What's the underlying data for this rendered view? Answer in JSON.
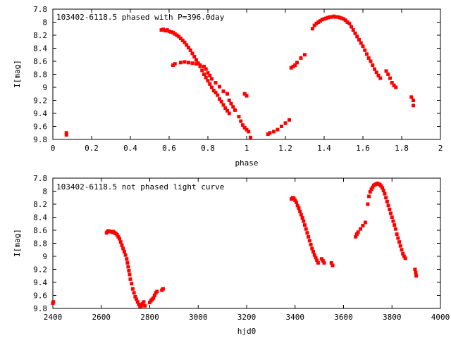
{
  "chart_data": [
    {
      "type": "scatter",
      "title": "103402-6118.5 phased with P=396.0day",
      "xlabel": "phase",
      "ylabel": "I[mag]",
      "xlim": [
        0,
        2
      ],
      "ylim": [
        7.8,
        9.8
      ],
      "y_inverted": true,
      "grid": false,
      "legend": "none",
      "xticks": [
        "0",
        "0.2",
        "0.4",
        "0.6",
        "0.8",
        "1",
        "1.2",
        "1.4",
        "1.6",
        "1.8",
        "2"
      ],
      "yticks": [
        "7.8",
        "8",
        "8.2",
        "8.4",
        "8.6",
        "8.8",
        "9",
        "9.2",
        "9.4",
        "9.6",
        "9.8"
      ],
      "marker_color": "#ff0000",
      "series": [
        {
          "x": [
            0.07,
            0.07,
            0.56,
            0.57,
            0.58,
            0.59,
            0.6,
            0.61,
            0.62,
            0.63,
            0.64,
            0.65,
            0.66,
            0.67,
            0.68,
            0.69,
            0.7,
            0.71,
            0.72,
            0.73,
            0.74,
            0.75,
            0.76,
            0.77,
            0.78,
            0.79,
            0.8,
            0.81,
            0.82,
            0.83,
            0.84,
            0.85,
            0.86,
            0.87,
            0.88,
            0.89,
            0.9,
            0.91,
            0.62,
            0.63,
            0.66,
            0.68,
            0.7,
            0.72,
            0.74,
            0.76,
            0.78,
            0.79,
            0.8,
            0.81,
            0.82,
            0.84,
            0.86,
            0.88,
            0.9,
            0.91,
            0.92,
            0.93,
            0.94,
            0.96,
            0.97,
            0.98,
            0.99,
            1.0,
            1.01,
            0.99,
            1.0,
            1.02,
            1.11,
            1.12,
            1.14,
            1.16,
            1.18,
            1.2,
            1.22,
            1.23,
            1.24,
            1.25,
            1.26,
            1.28,
            1.3,
            1.34,
            1.35,
            1.36,
            1.37,
            1.38,
            1.39,
            1.4,
            1.41,
            1.42,
            1.43,
            1.44,
            1.45,
            1.46,
            1.47,
            1.48,
            1.49,
            1.5,
            1.51,
            1.52,
            1.53,
            1.54,
            1.55,
            1.56,
            1.57,
            1.58,
            1.59,
            1.6,
            1.61,
            1.62,
            1.63,
            1.64,
            1.65,
            1.66,
            1.67,
            1.68,
            1.69,
            1.72,
            1.73,
            1.74,
            1.75,
            1.76,
            1.77,
            1.85,
            1.86,
            1.86
          ],
          "y": [
            9.7,
            9.73,
            8.12,
            8.11,
            8.13,
            8.12,
            8.14,
            8.15,
            8.16,
            8.18,
            8.2,
            8.22,
            8.25,
            8.28,
            8.31,
            8.35,
            8.39,
            8.43,
            8.48,
            8.53,
            8.58,
            8.63,
            8.68,
            8.74,
            8.8,
            8.85,
            8.9,
            8.95,
            9.0,
            9.05,
            9.08,
            9.12,
            9.18,
            9.22,
            9.27,
            9.32,
            9.36,
            9.4,
            8.66,
            8.64,
            8.62,
            8.61,
            8.62,
            8.63,
            8.64,
            8.66,
            8.68,
            8.72,
            8.78,
            8.82,
            8.87,
            8.93,
            8.99,
            9.06,
            9.1,
            9.2,
            9.25,
            9.3,
            9.35,
            9.45,
            9.52,
            9.58,
            9.62,
            9.65,
            9.68,
            9.1,
            9.13,
            9.77,
            9.72,
            9.7,
            9.68,
            9.65,
            9.6,
            9.55,
            9.5,
            8.7,
            8.68,
            8.66,
            8.62,
            8.55,
            8.5,
            8.1,
            8.05,
            8.02,
            8.0,
            7.98,
            7.96,
            7.95,
            7.94,
            7.93,
            7.92,
            7.92,
            7.91,
            7.92,
            7.92,
            7.93,
            7.94,
            7.95,
            7.97,
            8.0,
            8.02,
            8.07,
            8.12,
            8.17,
            8.22,
            8.27,
            8.32,
            8.37,
            8.43,
            8.49,
            8.55,
            8.6,
            8.66,
            8.72,
            8.77,
            8.82,
            8.86,
            8.75,
            8.8,
            8.86,
            8.93,
            8.97,
            9.0,
            9.15,
            9.2,
            9.28
          ]
        }
      ]
    },
    {
      "type": "scatter",
      "title": "103402-6118.5 not phased light curve",
      "xlabel": "hjd0",
      "ylabel": "I[mag]",
      "xlim": [
        2400,
        4000
      ],
      "ylim": [
        7.8,
        9.8
      ],
      "y_inverted": true,
      "grid": false,
      "legend": "none",
      "xticks": [
        "2400",
        "2600",
        "2800",
        "3000",
        "3200",
        "3400",
        "3600",
        "3800",
        "4000"
      ],
      "yticks": [
        "7.8",
        "8",
        "8.2",
        "8.4",
        "8.6",
        "8.8",
        "9",
        "9.2",
        "9.4",
        "9.6",
        "9.8"
      ],
      "marker_color": "#ff0000",
      "series": [
        {
          "x": [
            2400,
            2402,
            2622,
            2625,
            2630,
            2635,
            2640,
            2645,
            2650,
            2655,
            2660,
            2665,
            2670,
            2675,
            2680,
            2685,
            2690,
            2695,
            2700,
            2705,
            2708,
            2711,
            2714,
            2717,
            2720,
            2725,
            2730,
            2735,
            2740,
            2745,
            2750,
            2755,
            2760,
            2765,
            2770,
            2775,
            2780,
            2800,
            2805,
            2810,
            2815,
            2820,
            2825,
            2830,
            2850,
            2855,
            3385,
            3390,
            3395,
            3400,
            3405,
            3410,
            3415,
            3420,
            3425,
            3430,
            3435,
            3440,
            3445,
            3450,
            3455,
            3460,
            3465,
            3470,
            3475,
            3480,
            3485,
            3490,
            3495,
            3510,
            3515,
            3520,
            3550,
            3555,
            3650,
            3655,
            3660,
            3670,
            3680,
            3690,
            3700,
            3705,
            3710,
            3715,
            3720,
            3725,
            3730,
            3735,
            3740,
            3745,
            3750,
            3755,
            3760,
            3765,
            3770,
            3775,
            3780,
            3785,
            3790,
            3795,
            3800,
            3805,
            3810,
            3815,
            3820,
            3825,
            3830,
            3835,
            3840,
            3845,
            3850,
            3855,
            3895,
            3898,
            3900
          ],
          "y": [
            9.72,
            9.7,
            8.64,
            8.62,
            8.61,
            8.62,
            8.62,
            8.63,
            8.62,
            8.64,
            8.65,
            8.67,
            8.7,
            8.73,
            8.78,
            8.83,
            8.88,
            8.93,
            8.98,
            9.04,
            9.1,
            9.16,
            9.22,
            9.28,
            9.35,
            9.42,
            9.5,
            9.56,
            9.62,
            9.66,
            9.7,
            9.74,
            9.77,
            9.76,
            9.73,
            9.7,
            9.76,
            9.71,
            9.68,
            9.66,
            9.64,
            9.6,
            9.56,
            9.54,
            9.52,
            9.5,
            8.12,
            8.1,
            8.11,
            8.14,
            8.17,
            8.22,
            8.26,
            8.31,
            8.36,
            8.41,
            8.46,
            8.52,
            8.58,
            8.64,
            8.7,
            8.76,
            8.82,
            8.88,
            8.93,
            8.98,
            9.02,
            9.06,
            9.1,
            9.04,
            9.07,
            9.1,
            9.1,
            9.14,
            8.7,
            8.66,
            8.63,
            8.58,
            8.53,
            8.48,
            8.2,
            8.08,
            8.01,
            7.97,
            7.94,
            7.91,
            7.9,
            7.89,
            7.88,
            7.89,
            7.9,
            7.92,
            7.95,
            7.99,
            8.04,
            8.1,
            8.16,
            8.22,
            8.28,
            8.34,
            8.4,
            8.46,
            8.52,
            8.58,
            8.66,
            8.72,
            8.78,
            8.84,
            8.9,
            8.96,
            9.0,
            9.03,
            9.2,
            9.25,
            9.3
          ]
        }
      ]
    }
  ]
}
